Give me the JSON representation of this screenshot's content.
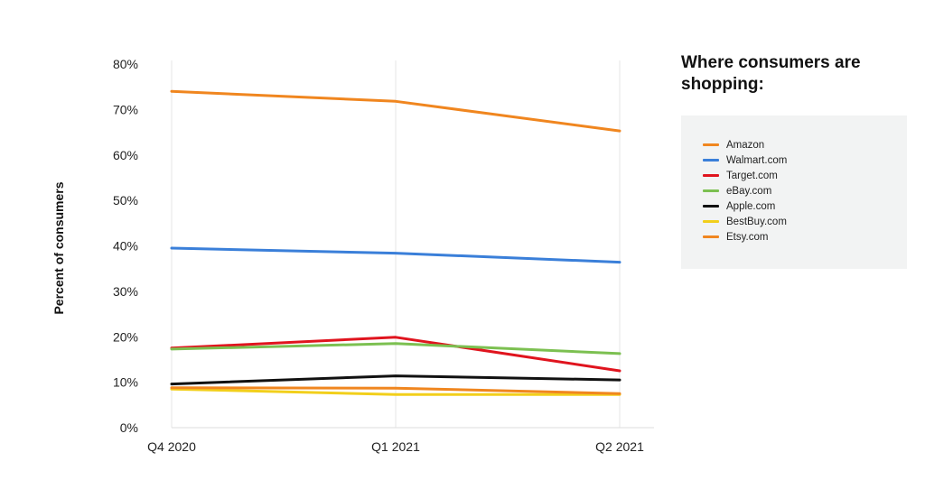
{
  "chart_data": {
    "type": "line",
    "title": "",
    "xlabel": "",
    "ylabel": "Percent of consumers",
    "categories": [
      "Q4 2020",
      "Q1 2021",
      "Q2 2021"
    ],
    "ylim": [
      0,
      80
    ],
    "yticks": [
      "0%",
      "10%",
      "20%",
      "30%",
      "40%",
      "50%",
      "60%",
      "70%",
      "80%"
    ],
    "grid": "vertical",
    "legend_title": "Where consumers are shopping:",
    "legend_position": "right",
    "series": [
      {
        "name": "Amazon",
        "color": "#f0861f",
        "values": [
          74.0,
          71.8,
          65.3
        ]
      },
      {
        "name": "Walmart.com",
        "color": "#3a7fd9",
        "values": [
          39.5,
          38.4,
          36.4
        ]
      },
      {
        "name": "Target.com",
        "color": "#e0141e",
        "values": [
          17.5,
          19.9,
          12.5
        ]
      },
      {
        "name": "eBay.com",
        "color": "#7cc051",
        "values": [
          17.3,
          18.5,
          16.3
        ]
      },
      {
        "name": "Apple.com",
        "color": "#111111",
        "values": [
          9.6,
          11.4,
          10.5
        ]
      },
      {
        "name": "BestBuy.com",
        "color": "#f2cf1b",
        "values": [
          8.5,
          7.3,
          7.3
        ]
      },
      {
        "name": "Etsy.com",
        "color": "#f0861f",
        "values": [
          8.8,
          8.7,
          7.5
        ]
      }
    ]
  }
}
